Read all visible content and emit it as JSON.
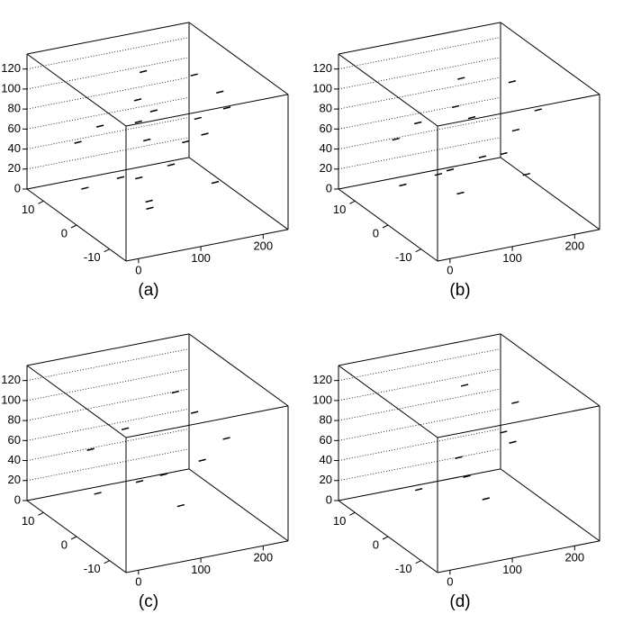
{
  "chart_data": [
    {
      "type": "scatter3d",
      "label": "(a)",
      "xlim": [
        -20,
        240
      ],
      "ylim": [
        -15,
        15
      ],
      "zlim": [
        0,
        135
      ],
      "xticks": [
        0,
        100,
        200
      ],
      "yticks": [
        -10,
        0,
        10
      ],
      "zticks": [
        0,
        20,
        40,
        60,
        80,
        100,
        120
      ],
      "points": {
        "x": [
          20,
          40,
          60,
          80,
          100,
          120,
          140,
          160,
          180,
          200,
          30,
          70,
          110,
          150,
          190,
          50,
          90,
          130,
          170,
          210
        ],
        "y": [
          5,
          -2,
          8,
          0,
          -6,
          3,
          10,
          -8,
          1,
          -4,
          9,
          -5,
          6,
          -1,
          4,
          -9,
          2,
          7,
          -3,
          0
        ],
        "z": [
          20,
          45,
          70,
          35,
          60,
          90,
          110,
          40,
          80,
          100,
          55,
          25,
          95,
          65,
          115,
          30,
          85,
          50,
          75,
          105
        ]
      }
    },
    {
      "type": "scatter3d",
      "label": "(b)",
      "xlim": [
        -20,
        240
      ],
      "ylim": [
        -15,
        15
      ],
      "zlim": [
        0,
        135
      ],
      "xticks": [
        0,
        100,
        200
      ],
      "yticks": [
        -10,
        0,
        10
      ],
      "zticks": [
        0,
        20,
        40,
        60,
        80,
        100,
        120
      ],
      "points": {
        "x": [
          25,
          45,
          65,
          85,
          105,
          125,
          145,
          165,
          185,
          205,
          35,
          75,
          115,
          155,
          195
        ],
        "y": [
          4,
          -3,
          7,
          1,
          -5,
          2,
          9,
          -7,
          0,
          -3,
          8,
          -4,
          5,
          -2,
          3
        ],
        "z": [
          25,
          50,
          75,
          40,
          65,
          85,
          105,
          45,
          70,
          95,
          60,
          30,
          90,
          55,
          110
        ]
      }
    },
    {
      "type": "scatter3d",
      "label": "(c)",
      "xlim": [
        -20,
        240
      ],
      "ylim": [
        -15,
        15
      ],
      "zlim": [
        0,
        135
      ],
      "xticks": [
        0,
        100,
        200
      ],
      "yticks": [
        -10,
        0,
        10
      ],
      "zticks": [
        0,
        20,
        40,
        60,
        80,
        100,
        120
      ],
      "points": {
        "x": [
          30,
          60,
          90,
          120,
          150,
          180,
          210,
          45,
          105,
          165
        ],
        "y": [
          3,
          -4,
          6,
          0,
          -6,
          2,
          -2,
          8,
          -8,
          5
        ],
        "z": [
          30,
          55,
          80,
          45,
          70,
          95,
          75,
          60,
          35,
          110
        ]
      }
    },
    {
      "type": "scatter3d",
      "label": "(d)",
      "xlim": [
        -20,
        240
      ],
      "ylim": [
        -15,
        15
      ],
      "zlim": [
        0,
        135
      ],
      "xticks": [
        0,
        100,
        200
      ],
      "yticks": [
        -10,
        0,
        10
      ],
      "zticks": [
        0,
        20,
        40,
        60,
        80,
        100,
        120
      ],
      "points": {
        "x": [
          40,
          80,
          120,
          160,
          200,
          100,
          140,
          180
        ],
        "y": [
          2,
          -5,
          5,
          -1,
          3,
          -7,
          7,
          0
        ],
        "z": [
          35,
          60,
          50,
          85,
          100,
          40,
          115,
          70
        ]
      }
    }
  ]
}
